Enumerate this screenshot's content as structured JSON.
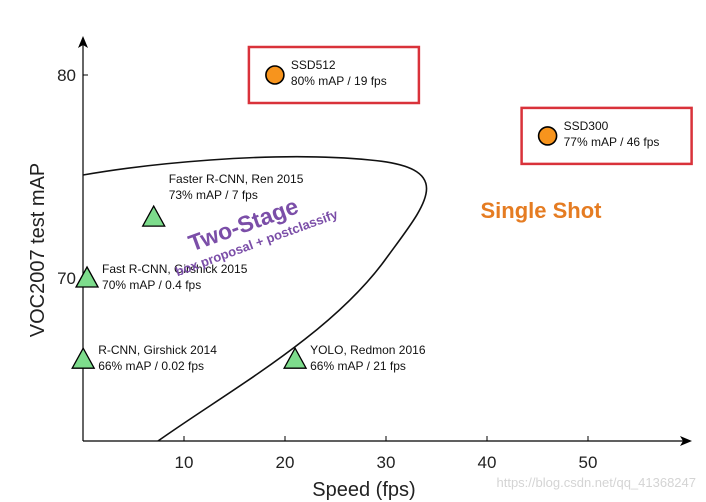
{
  "chart_data": {
    "type": "scatter",
    "xlabel": "Speed (fps)",
    "ylabel": "VOC2007 test mAP",
    "xlim": [
      0,
      59
    ],
    "ylim": [
      62,
      82
    ],
    "x_ticks": [
      10,
      20,
      30,
      40,
      50
    ],
    "y_ticks": [
      70,
      80
    ],
    "grid": false,
    "points": [
      {
        "name": "SSD512",
        "detail": "80% mAP / 19 fps",
        "x": 19,
        "y": 80,
        "marker": "circle",
        "color": "#f7941d",
        "boxed": true
      },
      {
        "name": "SSD300",
        "detail": "77% mAP / 46 fps",
        "x": 46,
        "y": 77,
        "marker": "circle",
        "color": "#f7941d",
        "boxed": true
      },
      {
        "name": "Faster R-CNN, Ren 2015",
        "detail": "73% mAP / 7 fps",
        "x": 7,
        "y": 73,
        "marker": "triangle",
        "color": "#7ddc8c"
      },
      {
        "name": "Fast R-CNN, Girshick 2015",
        "detail": "70% mAP / 0.4 fps",
        "x": 0.4,
        "y": 70,
        "marker": "triangle",
        "color": "#7ddc8c"
      },
      {
        "name": "R-CNN, Girshick 2014",
        "detail": "66% mAP / 0.02 fps",
        "x": 0.02,
        "y": 66,
        "marker": "triangle",
        "color": "#7ddc8c"
      },
      {
        "name": "YOLO, Redmon 2016",
        "detail": "66% mAP / 21 fps",
        "x": 21,
        "y": 66,
        "marker": "triangle",
        "color": "#7ddc8c"
      }
    ],
    "annotations": {
      "two_stage_title": "Two-Stage",
      "two_stage_subtitle": "box proposal + postclassify",
      "single_shot": "Single Shot"
    },
    "colors": {
      "two_stage": "#7b4ea8",
      "single_shot": "#e57c22",
      "box_border": "#d9323a"
    },
    "watermark": "https://blog.csdn.net/qq_41368247"
  }
}
